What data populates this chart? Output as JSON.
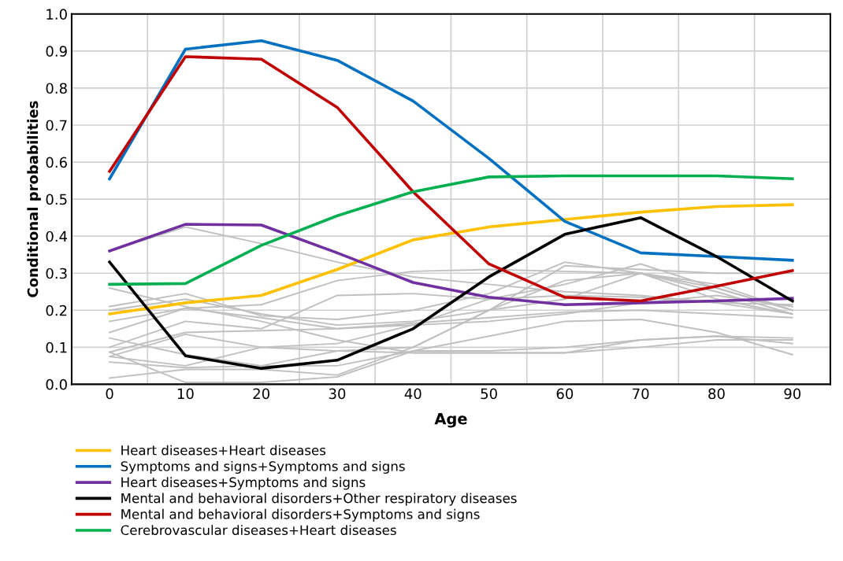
{
  "chart_data": {
    "type": "line",
    "xlabel": "Age",
    "ylabel": "Conditional probabilities",
    "categories": [
      "0",
      "10",
      "20",
      "30",
      "40",
      "50",
      "60",
      "70",
      "80",
      "90"
    ],
    "ylim": [
      0,
      1
    ],
    "yticks": [
      {
        "value": 0,
        "label": "0.0"
      },
      {
        "value": 0.1,
        "label": "0.1"
      },
      {
        "value": 0.2,
        "label": "0.2"
      },
      {
        "value": 0.3,
        "label": "0.3"
      },
      {
        "value": 0.4,
        "label": "0.4"
      },
      {
        "value": 0.5,
        "label": "0.5"
      },
      {
        "value": 0.6,
        "label": "0.6"
      },
      {
        "value": 0.7,
        "label": "0.7"
      },
      {
        "value": 0.8,
        "label": "0.8"
      },
      {
        "value": 0.9,
        "label": "0.9"
      },
      {
        "value": 1,
        "label": "1.0"
      }
    ],
    "grid": true,
    "legend": "bottom",
    "marker": "none",
    "line_style": "solid",
    "series": [
      {
        "color": "#c0c0c0",
        "values": [
          0.36,
          0.425,
          0.38,
          0.33,
          0.29,
          0.27,
          0.25,
          0.24,
          0.22,
          0.19
        ]
      },
      {
        "color": "#c0c0c0",
        "values": [
          0.26,
          0.21,
          0.17,
          0.12,
          0.085,
          0.085,
          0.085,
          0.1,
          0.12,
          0.12
        ]
      },
      {
        "color": "#c0c0c0",
        "values": [
          0.21,
          0.245,
          0.185,
          0.175,
          0.2,
          0.245,
          0.33,
          0.3,
          0.23,
          0.19
        ]
      },
      {
        "color": "#c0c0c0",
        "values": [
          0.2,
          0.23,
          0.19,
          0.16,
          0.17,
          0.2,
          0.23,
          0.3,
          0.27,
          0.2
        ]
      },
      {
        "color": "#c0c0c0",
        "values": [
          0.17,
          0.205,
          0.18,
          0.15,
          0.16,
          0.17,
          0.19,
          0.22,
          0.24,
          0.21
        ]
      },
      {
        "color": "#c0c0c0",
        "values": [
          0.14,
          0.205,
          0.215,
          0.28,
          0.305,
          0.31,
          0.305,
          0.3,
          0.25,
          0.19
        ]
      },
      {
        "color": "#c0c0c0",
        "values": [
          0.125,
          0.08,
          0.05,
          0.09,
          0.1,
          0.2,
          0.28,
          0.3,
          0.26,
          0.2
        ]
      },
      {
        "color": "#c0c0c0",
        "values": [
          0.087,
          0.14,
          0.145,
          0.15,
          0.165,
          0.18,
          0.195,
          0.2,
          0.19,
          0.18
        ]
      },
      {
        "color": "#c0c0c0",
        "values": [
          0.075,
          0.135,
          0.1,
          0.11,
          0.16,
          0.23,
          0.27,
          0.325,
          0.26,
          0.2
        ]
      },
      {
        "color": "#c0c0c0",
        "values": [
          0.06,
          0.045,
          0.05,
          0.05,
          0.09,
          0.13,
          0.17,
          0.175,
          0.14,
          0.08
        ]
      },
      {
        "color": "#c0c0c0",
        "values": [
          0.017,
          0.04,
          0.04,
          0.025,
          0.1,
          0.2,
          0.32,
          0.31,
          0.3,
          0.3
        ]
      },
      {
        "color": "#c0c0c0",
        "values": [
          0.087,
          0.005,
          0.005,
          0.02,
          0.09,
          0.09,
          0.1,
          0.12,
          0.13,
          0.11
        ]
      },
      {
        "color": "#c0c0c0",
        "values": [
          0.075,
          0.05,
          0.1,
          0.09,
          0.085,
          0.085,
          0.085,
          0.12,
          0.13,
          0.125
        ]
      },
      {
        "color": "#c0c0c0",
        "values": [
          0.1,
          0.17,
          0.15,
          0.24,
          0.245,
          0.23,
          0.24,
          0.235,
          0.22,
          0.215
        ]
      },
      {
        "name": "Heart diseases+Heart diseases",
        "color": "#ffc000",
        "values": [
          0.19,
          0.22,
          0.24,
          0.31,
          0.39,
          0.425,
          0.445,
          0.465,
          0.48,
          0.485
        ]
      },
      {
        "name": "Symptoms and signs+Symptoms and signs",
        "color": "#0070c0",
        "values": [
          0.555,
          0.905,
          0.928,
          0.875,
          0.765,
          0.61,
          0.44,
          0.355,
          0.345,
          0.335
        ]
      },
      {
        "name": "Heart diseases+Symptoms and signs",
        "color": "#7030a0",
        "values": [
          0.36,
          0.432,
          0.43,
          0.355,
          0.275,
          0.235,
          0.215,
          0.22,
          0.225,
          0.232
        ]
      },
      {
        "name": "Mental and behavioral disorders+Other respiratory diseases",
        "color": "#000000",
        "values": [
          0.33,
          0.077,
          0.043,
          0.065,
          0.15,
          0.29,
          0.405,
          0.45,
          0.345,
          0.225
        ]
      },
      {
        "name": "Mental and behavioral disorders+Symptoms and signs",
        "color": "#c00000",
        "values": [
          0.575,
          0.885,
          0.878,
          0.748,
          0.52,
          0.325,
          0.235,
          0.225,
          0.265,
          0.307
        ]
      },
      {
        "name": "Cerebrovascular diseases+Heart diseases",
        "color": "#00b050",
        "values": [
          0.27,
          0.272,
          0.375,
          0.455,
          0.52,
          0.56,
          0.563,
          0.563,
          0.563,
          0.555
        ]
      }
    ]
  }
}
